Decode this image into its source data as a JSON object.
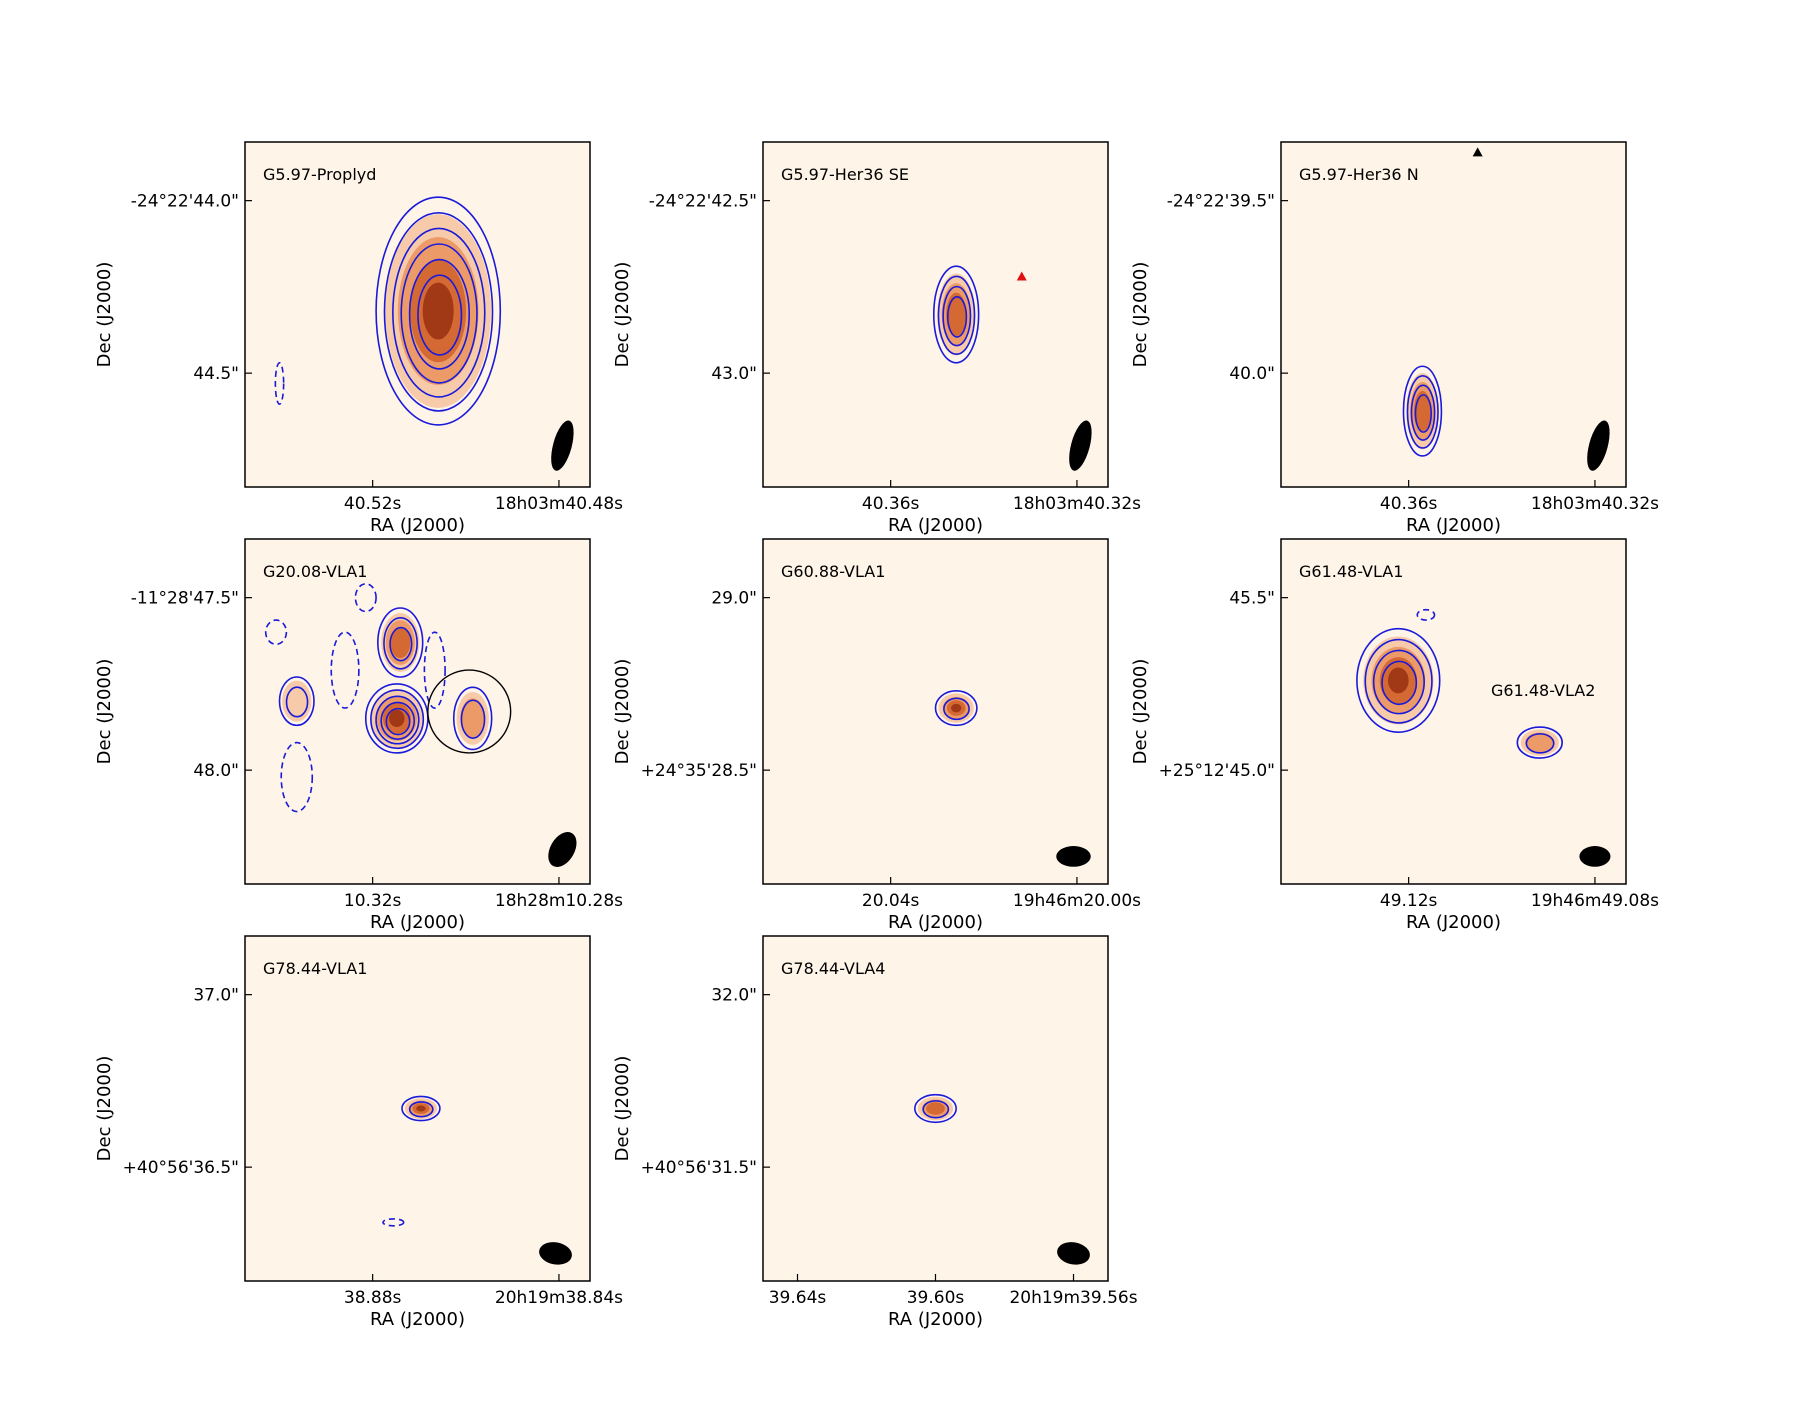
{
  "colors": {
    "map_bg": "#fef4e8",
    "positive_contour": "#1a1adb",
    "beam": "#000000",
    "marker_red": "#e01010",
    "marker_black": "#000000",
    "emission_light": "#f6c6a2",
    "emission_mid": "#eb9562",
    "emission_strong": "#d2642f",
    "emission_peak": "#9c3413"
  },
  "chart_data": [
    {
      "type": "image-contour",
      "title": "G5.97-Proplyd",
      "xlabel": "RA (J2000)",
      "ylabel": "Dec (J2000)",
      "xticks": [
        "40.52s",
        "18h03m40.48s"
      ],
      "yticks": [
        "-24°22'44.0\"",
        "44.5\""
      ],
      "sources": [
        {
          "x": 0.56,
          "y": 0.49,
          "rx": 0.18,
          "ry": 0.33,
          "intensity": 0.95,
          "contours": 6
        }
      ],
      "negative_contours": [
        {
          "x": 0.1,
          "y": 0.7,
          "rx": 0.012,
          "ry": 0.06
        }
      ],
      "beam": {
        "x": 0.92,
        "y": 0.88,
        "rx": 0.027,
        "ry": 0.075,
        "angle": 15
      },
      "markers": []
    },
    {
      "type": "image-contour",
      "title": "G5.97-Her36 SE",
      "xlabel": "RA (J2000)",
      "ylabel": "Dec (J2000)",
      "xticks": [
        "40.36s",
        "18h03m40.32s"
      ],
      "yticks": [
        "-24°22'42.5\"",
        "43.0\""
      ],
      "sources": [
        {
          "x": 0.56,
          "y": 0.5,
          "rx": 0.065,
          "ry": 0.14,
          "intensity": 0.85,
          "contours": 4
        }
      ],
      "negative_contours": [],
      "beam": {
        "x": 0.92,
        "y": 0.88,
        "rx": 0.027,
        "ry": 0.075,
        "angle": 15
      },
      "markers": [
        {
          "x": 0.75,
          "y": 0.39,
          "color": "red"
        }
      ]
    },
    {
      "type": "image-contour",
      "title": "G5.97-Her36 N",
      "xlabel": "RA (J2000)",
      "ylabel": "Dec (J2000)",
      "xticks": [
        "40.36s",
        "18h03m40.32s"
      ],
      "yticks": [
        "-24°22'39.5\"",
        "40.0\""
      ],
      "sources": [
        {
          "x": 0.41,
          "y": 0.78,
          "rx": 0.055,
          "ry": 0.13,
          "intensity": 0.85,
          "contours": 4
        }
      ],
      "negative_contours": [],
      "beam": {
        "x": 0.92,
        "y": 0.88,
        "rx": 0.027,
        "ry": 0.075,
        "angle": 15
      },
      "markers": [
        {
          "x": 0.57,
          "y": 0.03,
          "color": "black"
        }
      ]
    },
    {
      "type": "image-contour",
      "title": "G20.08-VLA1",
      "xlabel": "RA (J2000)",
      "ylabel": "Dec (J2000)",
      "xticks": [
        "10.32s",
        "18h28m10.28s"
      ],
      "yticks": [
        "-11°28'47.5\"",
        "48.0\""
      ],
      "sources": [
        {
          "x": 0.44,
          "y": 0.52,
          "rx": 0.09,
          "ry": 0.1,
          "intensity": 1.0,
          "contours": 5
        },
        {
          "x": 0.45,
          "y": 0.3,
          "rx": 0.065,
          "ry": 0.1,
          "intensity": 0.75,
          "contours": 3
        },
        {
          "x": 0.66,
          "y": 0.52,
          "rx": 0.055,
          "ry": 0.09,
          "intensity": 0.4,
          "contours": 2
        },
        {
          "x": 0.15,
          "y": 0.47,
          "rx": 0.05,
          "ry": 0.07,
          "intensity": 0.3,
          "contours": 2
        }
      ],
      "negative_contours": [
        {
          "x": 0.09,
          "y": 0.27,
          "rx": 0.03,
          "ry": 0.035
        },
        {
          "x": 0.35,
          "y": 0.17,
          "rx": 0.03,
          "ry": 0.04
        },
        {
          "x": 0.29,
          "y": 0.38,
          "rx": 0.04,
          "ry": 0.11
        },
        {
          "x": 0.15,
          "y": 0.69,
          "rx": 0.045,
          "ry": 0.1
        },
        {
          "x": 0.55,
          "y": 0.38,
          "rx": 0.03,
          "ry": 0.11
        }
      ],
      "circle": {
        "x": 0.65,
        "y": 0.5,
        "r": 0.12
      },
      "beam": {
        "x": 0.92,
        "y": 0.9,
        "rx": 0.035,
        "ry": 0.055,
        "angle": 30
      },
      "markers": []
    },
    {
      "type": "image-contour",
      "title": "G60.88-VLA1",
      "xlabel": "RA (J2000)",
      "ylabel": "Dec (J2000)",
      "xticks": [
        "20.04s",
        "19h46m20.00s"
      ],
      "yticks": [
        "29.0\"",
        "+24°35'28.5\""
      ],
      "sources": [
        {
          "x": 0.56,
          "y": 0.49,
          "rx": 0.06,
          "ry": 0.05,
          "intensity": 0.9,
          "contours": 2
        }
      ],
      "negative_contours": [],
      "beam": {
        "x": 0.9,
        "y": 0.92,
        "rx": 0.05,
        "ry": 0.03,
        "angle": 0
      },
      "markers": []
    },
    {
      "type": "image-contour",
      "title": "G61.48-VLA1",
      "xlabel": "RA (J2000)",
      "ylabel": "Dec (J2000)",
      "xticks": [
        "49.12s",
        "19h46m49.08s"
      ],
      "yticks": [
        "45.5\"",
        "+25°12'45.0\""
      ],
      "annotation": "G61.48-VLA2",
      "sources": [
        {
          "x": 0.34,
          "y": 0.41,
          "rx": 0.12,
          "ry": 0.15,
          "intensity": 0.95,
          "contours": 4
        },
        {
          "x": 0.75,
          "y": 0.59,
          "rx": 0.065,
          "ry": 0.045,
          "intensity": 0.45,
          "contours": 2
        }
      ],
      "negative_contours": [
        {
          "x": 0.42,
          "y": 0.22,
          "rx": 0.025,
          "ry": 0.015
        }
      ],
      "beam": {
        "x": 0.91,
        "y": 0.92,
        "rx": 0.045,
        "ry": 0.03,
        "angle": 0
      },
      "markers": []
    },
    {
      "type": "image-contour",
      "title": "G78.44-VLA1",
      "xlabel": "RA (J2000)",
      "ylabel": "Dec (J2000)",
      "xticks": [
        "38.88s",
        "20h19m38.84s"
      ],
      "yticks": [
        "37.0\"",
        "+40°56'36.5\""
      ],
      "sources": [
        {
          "x": 0.51,
          "y": 0.5,
          "rx": 0.055,
          "ry": 0.035,
          "intensity": 0.9,
          "contours": 2
        }
      ],
      "negative_contours": [
        {
          "x": 0.43,
          "y": 0.83,
          "rx": 0.03,
          "ry": 0.01
        }
      ],
      "beam": {
        "x": 0.9,
        "y": 0.92,
        "rx": 0.048,
        "ry": 0.032,
        "angle": 10
      },
      "markers": []
    },
    {
      "type": "image-contour",
      "title": "G78.44-VLA4",
      "xlabel": "RA (J2000)",
      "ylabel": "Dec (J2000)",
      "xticks": [
        "39.64s",
        "39.60s",
        "20h19m39.56s"
      ],
      "yticks": [
        "32.0\"",
        "+40°56'31.5\""
      ],
      "sources": [
        {
          "x": 0.5,
          "y": 0.5,
          "rx": 0.06,
          "ry": 0.04,
          "intensity": 0.85,
          "contours": 2
        }
      ],
      "negative_contours": [],
      "beam": {
        "x": 0.9,
        "y": 0.92,
        "rx": 0.048,
        "ry": 0.032,
        "angle": 10
      },
      "markers": []
    }
  ]
}
